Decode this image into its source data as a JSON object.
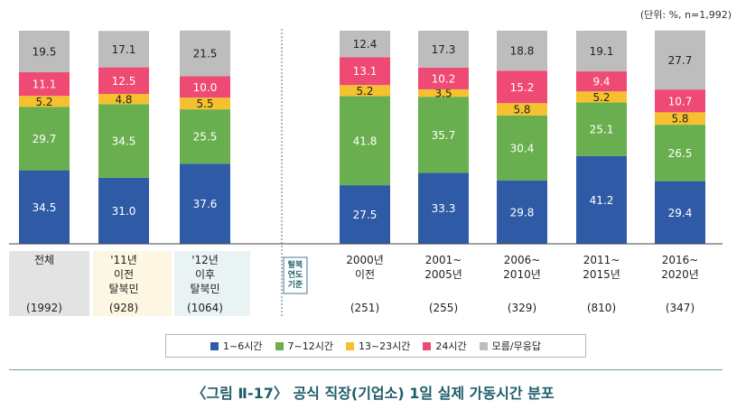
{
  "unit_note": "(단위: %, n=1,992)",
  "caption": "〈그림 Ⅱ-17〉 공식 직장(기업소) 1일 실제 가동시간 분포",
  "side_label": [
    "탈북",
    "연도",
    "기준"
  ],
  "colors": {
    "s1": "#2f5ba6",
    "s2": "#6aaf4f",
    "s3": "#f5c12e",
    "s4": "#ee4a73",
    "s5": "#bdbdbd",
    "bg_total": "#e3e3e3",
    "bg_2011": "#fdf6e2",
    "bg_2012": "#e9f3f4"
  },
  "chart_data": {
    "type": "bar",
    "stacked": true,
    "ylim": [
      0,
      100
    ],
    "categories": [
      {
        "label": [
          "전체"
        ],
        "n": "(1992)"
      },
      {
        "label": [
          "'11년",
          "이전",
          "탈북민"
        ],
        "n": "(928)"
      },
      {
        "label": [
          "'12년",
          "이후",
          "탈북민"
        ],
        "n": "(1064)"
      },
      {
        "label": [
          "2000년",
          "이전"
        ],
        "n": "(251)"
      },
      {
        "label": [
          "2001~",
          "2005년"
        ],
        "n": "(255)"
      },
      {
        "label": [
          "2006~",
          "2010년"
        ],
        "n": "(329)"
      },
      {
        "label": [
          "2011~",
          "2015년"
        ],
        "n": "(810)"
      },
      {
        "label": [
          "2016~",
          "2020년"
        ],
        "n": "(347)"
      }
    ],
    "series": [
      {
        "name": "1~6시간",
        "values": [
          34.5,
          31.0,
          37.6,
          27.5,
          33.3,
          29.8,
          41.2,
          29.4
        ]
      },
      {
        "name": "7~12시간",
        "values": [
          29.7,
          34.5,
          25.5,
          41.8,
          35.7,
          30.4,
          25.1,
          26.5
        ]
      },
      {
        "name": "13~23시간",
        "values": [
          5.2,
          4.8,
          5.5,
          5.2,
          3.5,
          5.8,
          5.2,
          5.8
        ]
      },
      {
        "name": "24시간",
        "values": [
          11.1,
          12.5,
          10.0,
          13.1,
          10.2,
          15.2,
          9.4,
          10.7
        ]
      },
      {
        "name": "모름/무응답",
        "values": [
          19.5,
          17.1,
          21.5,
          12.4,
          17.3,
          18.8,
          19.1,
          27.7
        ]
      }
    ],
    "value_labels": [
      [
        "34.5",
        "31.0",
        "37.6",
        "27.5",
        "33.3",
        "29.8",
        "41.2",
        "29.4"
      ],
      [
        "29.7",
        "34.5",
        "25.5",
        "41.8",
        "35.7",
        "30.4",
        "25.1",
        "26.5"
      ],
      [
        "5.2",
        "4.8",
        "5.5",
        "5.2",
        "3.5",
        "5.8",
        "5.2",
        "5.8"
      ],
      [
        "11.1",
        "12.5",
        "10.0",
        "13.1",
        "10.2",
        "15.2",
        "9.4",
        "10.7"
      ],
      [
        "19.5",
        "17.1",
        "21.5",
        "12.4",
        "17.3",
        "18.8",
        "19.1",
        "27.7"
      ]
    ]
  }
}
